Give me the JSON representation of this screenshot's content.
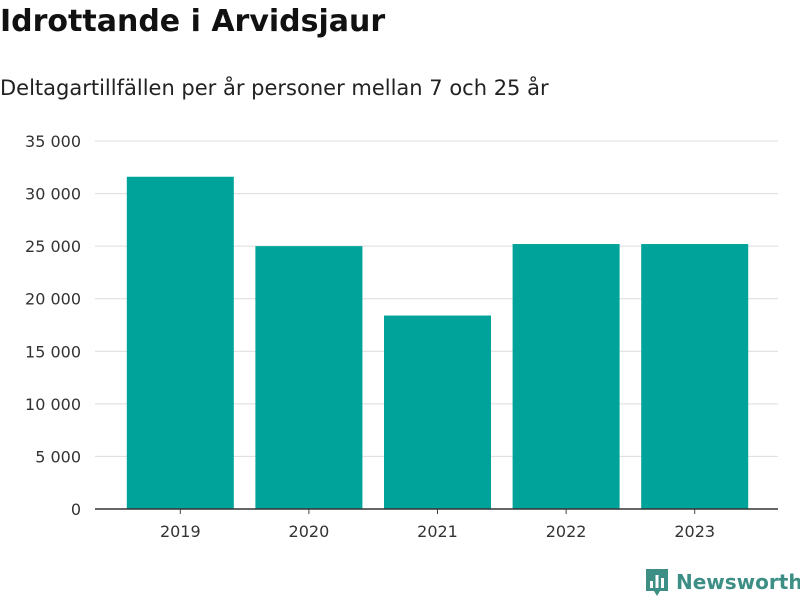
{
  "title": "Idrottande i Arvidsjaur",
  "subtitle": "Deltagartillfällen per år personer mellan 7 och 25 år",
  "brand": {
    "name": "Newsworthy",
    "icon": "bar-chart-icon",
    "color": "#3d8f86"
  },
  "chart_data": {
    "type": "bar",
    "categories": [
      "2019",
      "2020",
      "2021",
      "2022",
      "2023"
    ],
    "values": [
      31600,
      25000,
      18400,
      25200,
      25200
    ],
    "ylim": [
      0,
      35000
    ],
    "yticks": [
      0,
      5000,
      10000,
      15000,
      20000,
      25000,
      30000,
      35000
    ],
    "ytick_labels": [
      "0",
      "5 000",
      "10 000",
      "15 000",
      "20 000",
      "25 000",
      "30 000",
      "35 000"
    ],
    "grid": true,
    "bar_color": "#00a399",
    "xlabel": "",
    "ylabel": ""
  }
}
